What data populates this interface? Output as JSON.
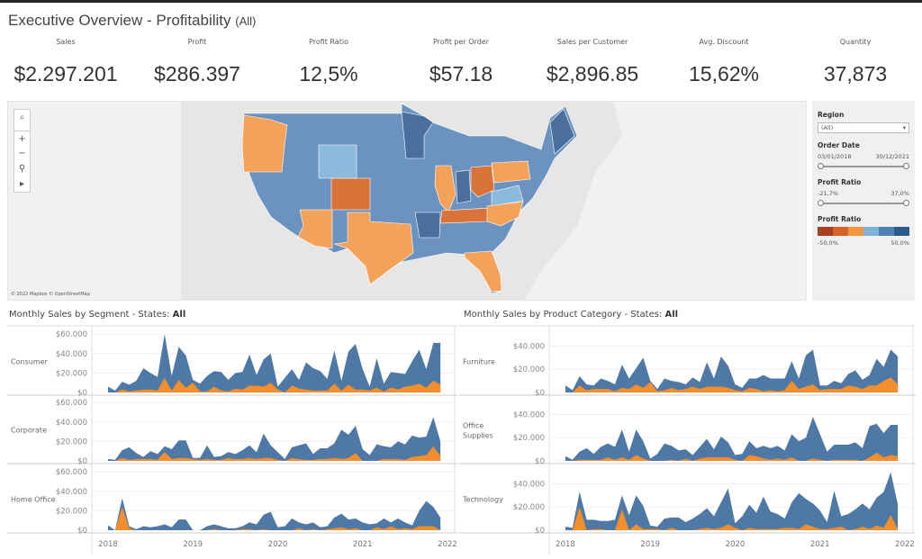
{
  "header": {
    "title": "Executive Overview - Profitability",
    "title_suffix": "(All)"
  },
  "kpis": [
    {
      "label": "Sales",
      "value": "$2.297.201"
    },
    {
      "label": "Profit",
      "value": "$286.397"
    },
    {
      "label": "Profit Ratio",
      "value": "12,5%"
    },
    {
      "label": "Profit per Order",
      "value": "$57.18"
    },
    {
      "label": "Sales per Customer",
      "value": "$2,896.85"
    },
    {
      "label": "Avg. Discount",
      "value": "15,62%"
    },
    {
      "label": "Quantity",
      "value": "37,873"
    }
  ],
  "map": {
    "attribution": "© 2022 Mapbox © OpenStreetMap",
    "controls": [
      "search-icon",
      "zoom-in-icon",
      "zoom-out-icon",
      "pin-icon",
      "play-icon"
    ]
  },
  "filters": {
    "region": {
      "label": "Region",
      "value": "(All)"
    },
    "order_date": {
      "label": "Order Date",
      "start": "03/01/2018",
      "end": "30/12/2021"
    },
    "profit_ratio": {
      "label": "Profit Ratio",
      "min": "-21,7%",
      "max": "37,0%"
    },
    "legend": {
      "label": "Profit Ratio",
      "min": "-50,0%",
      "max": "50,0%",
      "colors": [
        "#a9401f",
        "#d7632a",
        "#f4953f",
        "#7fb2d9",
        "#4f81b0",
        "#2c5a8a"
      ]
    }
  },
  "colors": {
    "sales": "#4e79a7",
    "profit": "#f28e2b"
  },
  "chart_data": [
    {
      "type": "area",
      "title": "Monthly Sales by Segment - States: ",
      "title_bold": "All",
      "x_ticks": [
        "2018",
        "2019",
        "2020",
        "2021",
        "2022"
      ],
      "y_ticks": [
        "$0",
        "$20.000",
        "$40.000",
        "$60.000"
      ],
      "ylim": [
        0,
        62000
      ],
      "x": "monthly Jan 2018 - Dec 2021",
      "units": "thousands $",
      "panels": [
        {
          "name": "Consumer",
          "sales": [
            6,
            2,
            11,
            8,
            12,
            25,
            20,
            16,
            60,
            17,
            47,
            38,
            13,
            9,
            17,
            22,
            21,
            13,
            20,
            21,
            39,
            18,
            34,
            40,
            6,
            15,
            24,
            13,
            31,
            25,
            22,
            14,
            43,
            12,
            42,
            50,
            24,
            6,
            35,
            9,
            21,
            20,
            19,
            32,
            44,
            24,
            51,
            51
          ],
          "profit": [
            0,
            0,
            3,
            1,
            2,
            3,
            3,
            2,
            15,
            2,
            13,
            5,
            10,
            1,
            1,
            6,
            2,
            1,
            4,
            3,
            7,
            7,
            6,
            10,
            3,
            0,
            7,
            4,
            3,
            2,
            2,
            2,
            9,
            2,
            8,
            3,
            3,
            2,
            5,
            1,
            5,
            3,
            6,
            7,
            9,
            5,
            12,
            8
          ]
        },
        {
          "name": "Corporate",
          "sales": [
            2,
            1,
            11,
            14,
            8,
            4,
            10,
            7,
            15,
            12,
            21,
            21,
            3,
            3,
            16,
            4,
            5,
            9,
            7,
            11,
            16,
            9,
            28,
            16,
            9,
            2,
            14,
            16,
            18,
            7,
            13,
            13,
            18,
            32,
            27,
            36,
            12,
            6,
            17,
            15,
            14,
            20,
            17,
            26,
            24,
            25,
            45,
            20
          ],
          "profit": [
            0,
            0,
            3,
            1,
            2,
            2,
            2,
            1,
            9,
            2,
            3,
            3,
            2,
            1,
            2,
            1,
            1,
            3,
            2,
            2,
            3,
            2,
            3,
            3,
            1,
            0,
            3,
            2,
            1,
            1,
            2,
            2,
            3,
            2,
            3,
            8,
            0,
            0,
            0,
            2,
            2,
            2,
            1,
            4,
            5,
            6,
            15,
            5
          ]
        },
        {
          "name": "Home Office",
          "sales": [
            5,
            0,
            33,
            4,
            1,
            4,
            3,
            4,
            6,
            3,
            11,
            11,
            0,
            0,
            4,
            6,
            4,
            2,
            2,
            4,
            8,
            6,
            16,
            19,
            3,
            4,
            12,
            8,
            6,
            8,
            3,
            4,
            13,
            17,
            11,
            12,
            8,
            6,
            7,
            12,
            8,
            12,
            8,
            5,
            20,
            30,
            24,
            13
          ],
          "profit": [
            0,
            0,
            24,
            2,
            0,
            0,
            0,
            0,
            0,
            0,
            0,
            0,
            0,
            0,
            0,
            1,
            0,
            0,
            0,
            1,
            1,
            0,
            1,
            0,
            0,
            0,
            0,
            2,
            0,
            1,
            0,
            1,
            2,
            3,
            1,
            2,
            0,
            0,
            3,
            1,
            4,
            1,
            2,
            1,
            4,
            4,
            4,
            0
          ]
        }
      ]
    },
    {
      "type": "area",
      "title": "Monthly Sales by Product Category - States: ",
      "title_bold": "All",
      "x_ticks": [
        "2018",
        "2019",
        "2020",
        "2021",
        "2022"
      ],
      "y_ticks": [
        "$0",
        "$20.000",
        "$40.000"
      ],
      "ylim": [
        0,
        52000
      ],
      "x": "monthly Jan 2018 - Dec 2021",
      "units": "thousands $",
      "panels": [
        {
          "name": "Furniture",
          "sales": [
            6,
            2,
            14,
            7,
            6,
            12,
            10,
            7,
            24,
            12,
            21,
            30,
            10,
            3,
            12,
            10,
            9,
            7,
            13,
            9,
            26,
            12,
            31,
            23,
            7,
            4,
            12,
            12,
            15,
            12,
            12,
            12,
            27,
            12,
            32,
            37,
            6,
            6,
            10,
            8,
            16,
            19,
            11,
            15,
            29,
            22,
            37,
            31
          ],
          "profit": [
            0,
            0,
            6,
            2,
            3,
            3,
            3,
            1,
            4,
            3,
            7,
            4,
            9,
            1,
            2,
            4,
            2,
            3,
            5,
            3,
            5,
            5,
            5,
            4,
            2,
            1,
            4,
            3,
            1,
            2,
            1,
            2,
            10,
            3,
            5,
            7,
            2,
            3,
            3,
            3,
            6,
            5,
            3,
            6,
            6,
            10,
            13,
            7
          ]
        },
        {
          "name": "Office Supplies",
          "sales": [
            4,
            1,
            8,
            11,
            6,
            12,
            15,
            12,
            27,
            8,
            27,
            17,
            2,
            6,
            15,
            13,
            9,
            10,
            5,
            12,
            19,
            10,
            21,
            16,
            5,
            6,
            17,
            11,
            13,
            11,
            13,
            9,
            23,
            17,
            20,
            38,
            23,
            8,
            14,
            14,
            14,
            16,
            11,
            30,
            32,
            24,
            31,
            31
          ],
          "profit": [
            0,
            0,
            1,
            1,
            1,
            1,
            3,
            1,
            3,
            1,
            5,
            2,
            0,
            0,
            0,
            1,
            0,
            2,
            0,
            2,
            3,
            3,
            3,
            3,
            1,
            0,
            5,
            4,
            2,
            1,
            2,
            1,
            3,
            0,
            0,
            2,
            1,
            0,
            1,
            1,
            1,
            1,
            0,
            3,
            7,
            3,
            5,
            4
          ]
        },
        {
          "name": "Technology",
          "sales": [
            3,
            2,
            33,
            9,
            9,
            8,
            8,
            9,
            30,
            13,
            30,
            21,
            4,
            3,
            10,
            11,
            11,
            7,
            10,
            14,
            19,
            12,
            24,
            36,
            6,
            12,
            22,
            15,
            29,
            16,
            14,
            10,
            24,
            32,
            27,
            23,
            17,
            7,
            34,
            12,
            14,
            18,
            23,
            18,
            28,
            33,
            50,
            22
          ],
          "profit": [
            0,
            0,
            20,
            0,
            1,
            1,
            0,
            0,
            18,
            0,
            5,
            1,
            1,
            1,
            0,
            2,
            0,
            0,
            0,
            1,
            2,
            1,
            2,
            5,
            2,
            0,
            2,
            1,
            1,
            1,
            1,
            2,
            2,
            1,
            5,
            3,
            1,
            1,
            2,
            3,
            0,
            1,
            3,
            1,
            4,
            2,
            13,
            1
          ]
        }
      ]
    }
  ]
}
